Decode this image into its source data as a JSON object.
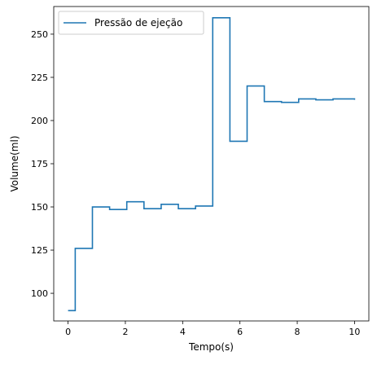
{
  "chart_data": {
    "type": "line",
    "step": "post",
    "xlabel": "Tempo(s)",
    "ylabel": "Volume(ml)",
    "xlim": [
      -0.5,
      10.5
    ],
    "ylim": [
      84,
      266
    ],
    "xticks": [
      0,
      2,
      4,
      6,
      8,
      10
    ],
    "yticks": [
      100,
      125,
      150,
      175,
      200,
      225,
      250
    ],
    "grid": false,
    "legend_position": "top-left",
    "series": [
      {
        "name": "Pressão de ejeção",
        "color": "#1f77b4",
        "x": [
          0,
          0.25,
          0.85,
          1.45,
          2.05,
          2.65,
          3.25,
          3.85,
          4.45,
          5.05,
          5.65,
          6.25,
          6.85,
          7.45,
          8.05,
          8.65,
          9.25,
          10.0
        ],
        "y": [
          90,
          126,
          150,
          148.5,
          153,
          149,
          151.5,
          149,
          150.5,
          259.5,
          188,
          220,
          211,
          210.5,
          212.5,
          212,
          212.5,
          212
        ]
      }
    ]
  }
}
